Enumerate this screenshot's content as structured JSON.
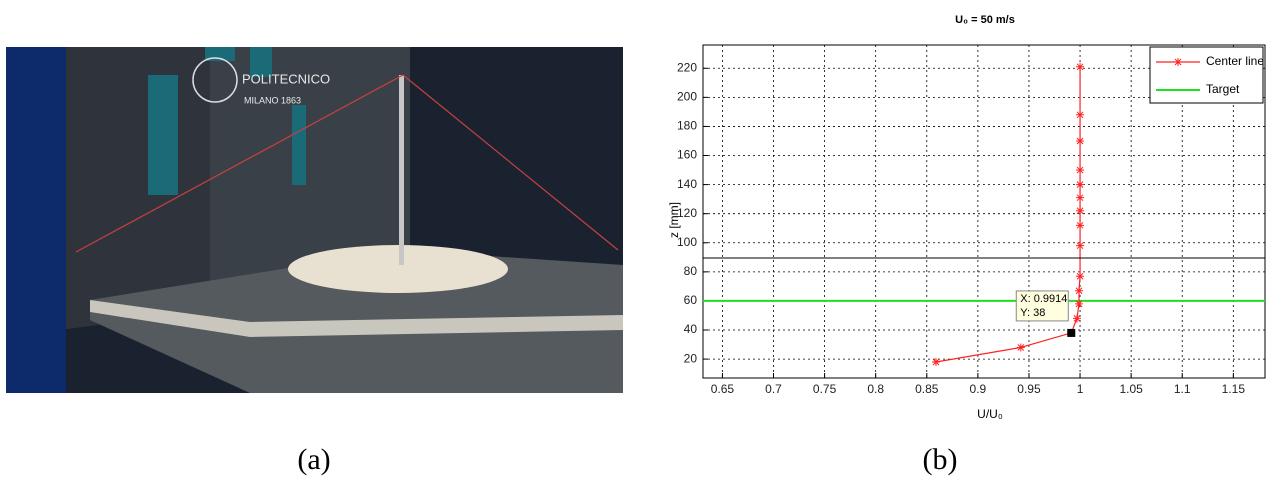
{
  "panel_labels": [
    "(a)",
    "(b)"
  ],
  "photo": {
    "text": [
      "POLITECNICO",
      "MILANO 1863"
    ]
  },
  "chart_data": {
    "type": "line",
    "title": "U₀ = 50 m/s",
    "xlabel": "U/U₀",
    "ylabel": "z [mm]",
    "xlim": [
      0.631,
      1.181
    ],
    "xticks": [
      0.65,
      0.7,
      0.75,
      0.8,
      0.85,
      0.9,
      0.95,
      1,
      1.05,
      1.1,
      1.15
    ],
    "ylim": [
      7,
      236
    ],
    "yticks": [
      20,
      40,
      60,
      80,
      100,
      120,
      140,
      160,
      180,
      200,
      220
    ],
    "grid": true,
    "legend": "upper right",
    "series": [
      {
        "name": "Center line",
        "color": "#ff2020",
        "x": [
          0.859,
          0.942,
          0.9914,
          0.997,
          0.999,
          0.999,
          1.0,
          1.0,
          1.0,
          1.0,
          1.0,
          1.0,
          1.0,
          1.0,
          1.0,
          1.0
        ],
        "values": [
          18,
          28,
          38,
          48,
          58,
          67,
          77,
          98,
          112,
          122,
          131,
          140,
          150,
          170,
          188,
          221
        ]
      }
    ],
    "target": {
      "name": "Target",
      "color": "#22dd22",
      "value": 60
    },
    "datatip": {
      "x": 0.9914,
      "y": 38,
      "lines": [
        "X: 0.9914",
        "Y: 38"
      ]
    }
  }
}
